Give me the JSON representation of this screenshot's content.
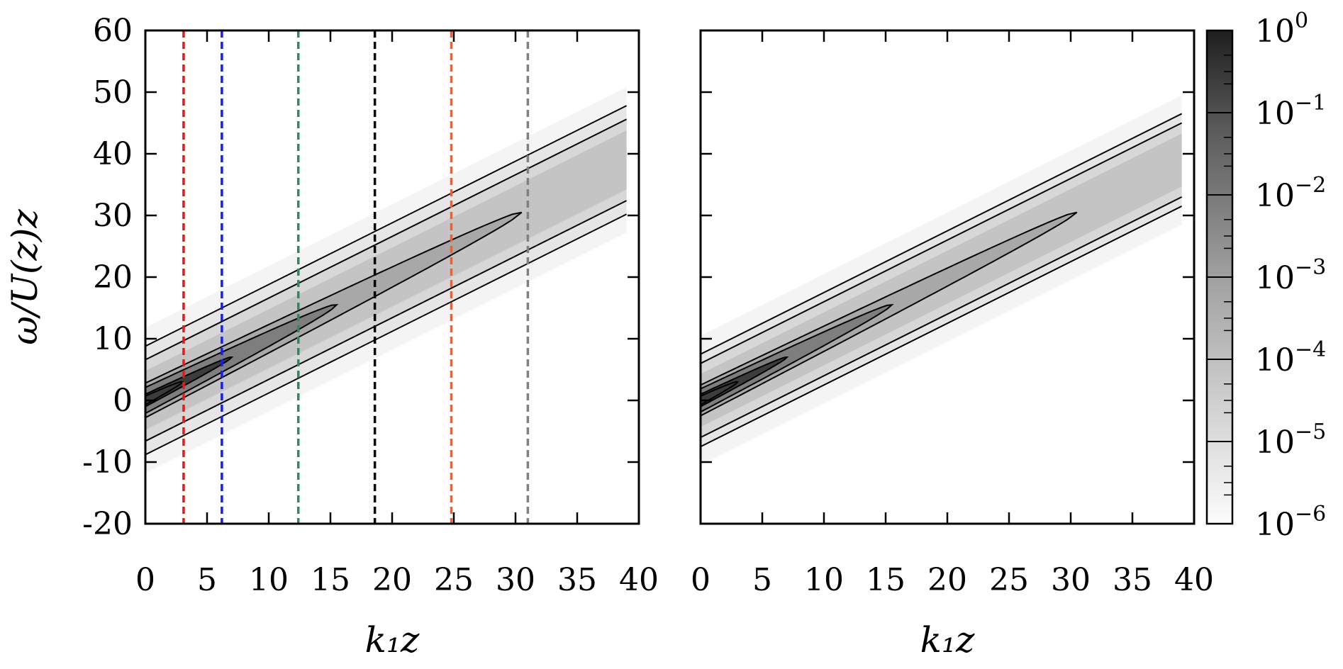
{
  "chart_data": [
    {
      "type": "heatmap",
      "panel": "left",
      "xlabel": "k₁z",
      "ylabel": "ω/U(z)z",
      "xlim": [
        0,
        40
      ],
      "ylim": [
        -20,
        60
      ],
      "x_ticks": [
        0,
        5,
        10,
        15,
        20,
        25,
        30,
        35,
        40
      ],
      "y_ticks": [
        -20,
        -10,
        0,
        10,
        20,
        30,
        40,
        50,
        60
      ],
      "x_tick_labels": [
        "0",
        "5",
        "10",
        "15",
        "20",
        "25",
        "30",
        "35",
        "40"
      ],
      "y_tick_labels": [
        "-20",
        "-10",
        "0",
        "10",
        "20",
        "30",
        "40",
        "50",
        "60"
      ],
      "ridge_slope": 1.0,
      "contour_half_widths_at_x0": [
        1.0,
        2.8,
        4.8,
        6.6,
        8.8
      ],
      "contour_tips": [
        3.0,
        7.0,
        15.5,
        30.5
      ],
      "data_extent_x": 39,
      "dashed_lines": [
        {
          "x": 3.1,
          "color": "#e41a1c"
        },
        {
          "x": 6.2,
          "color": "#1a1aff"
        },
        {
          "x": 12.4,
          "color": "#2e8b57"
        },
        {
          "x": 18.6,
          "color": "#000000"
        },
        {
          "x": 24.8,
          "color": "#ff5a1f"
        },
        {
          "x": 31.0,
          "color": "#808080"
        }
      ]
    },
    {
      "type": "heatmap",
      "panel": "right",
      "xlabel": "k₁z",
      "xlim": [
        0,
        40
      ],
      "ylim": [
        -20,
        60
      ],
      "x_ticks": [
        0,
        5,
        10,
        15,
        20,
        25,
        30,
        35,
        40
      ],
      "x_tick_labels": [
        "0",
        "5",
        "10",
        "15",
        "20",
        "25",
        "30",
        "35",
        "40"
      ],
      "ridge_slope": 1.0,
      "contour_half_widths_at_x0": [
        1.0,
        2.5,
        4.3,
        6.0,
        7.5
      ],
      "contour_tips": [
        3.0,
        7.0,
        15.5,
        30.5
      ],
      "data_extent_x": 39
    }
  ],
  "colorbar": {
    "scale": "log",
    "range": [
      1e-06,
      1
    ],
    "tick_labels": [
      {
        "base": "10",
        "exp": "0"
      },
      {
        "base": "10",
        "exp": "−1"
      },
      {
        "base": "10",
        "exp": "−2"
      },
      {
        "base": "10",
        "exp": "−3"
      },
      {
        "base": "10",
        "exp": "−4"
      },
      {
        "base": "10",
        "exp": "−5"
      },
      {
        "base": "10",
        "exp": "−6"
      }
    ]
  }
}
